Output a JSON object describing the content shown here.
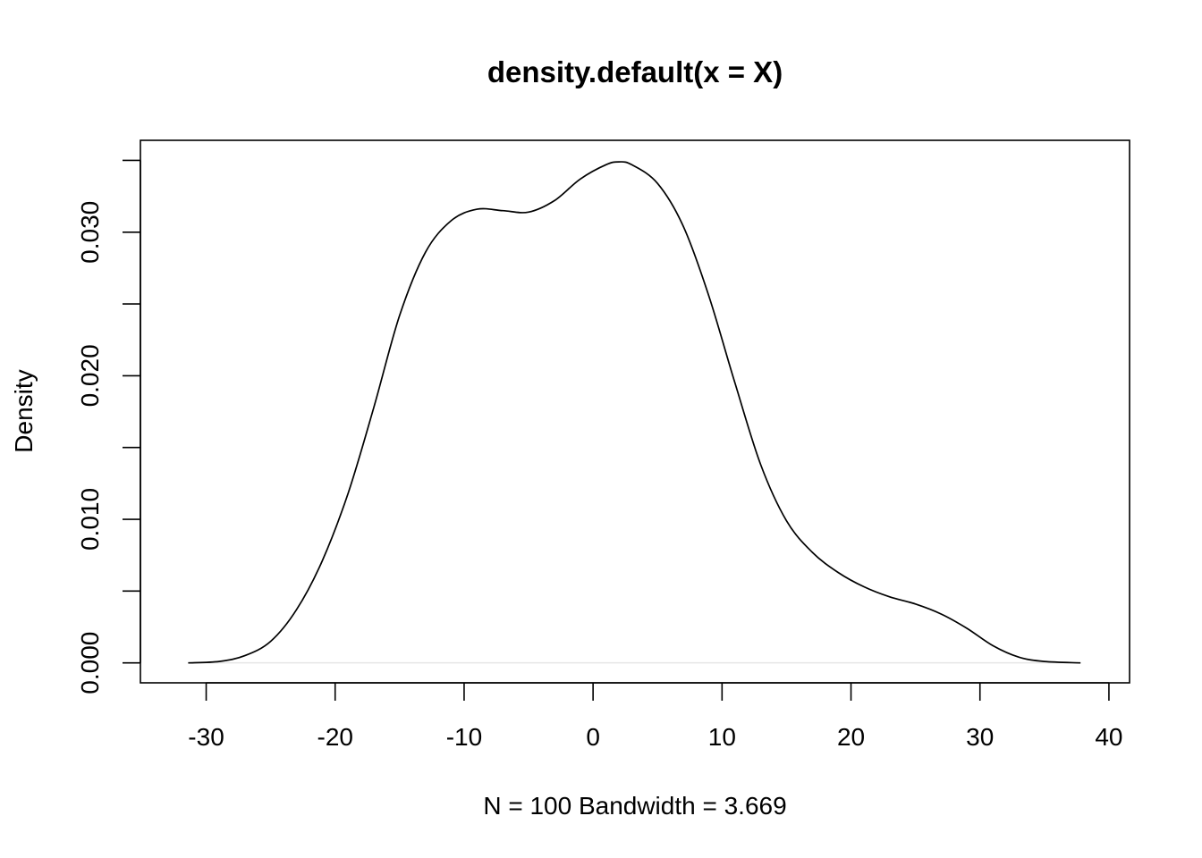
{
  "chart_data": {
    "type": "line",
    "title": "density.default(x = X)",
    "xlabel": "N = 100   Bandwidth = 3.669",
    "ylabel": "Density",
    "xlim": [
      -35.1,
      41.6
    ],
    "ylim": [
      -0.00139,
      0.0364
    ],
    "x_ticks": [
      -30,
      -20,
      -10,
      0,
      10,
      20,
      30,
      40
    ],
    "x_tick_labels": [
      "-30",
      "-20",
      "-10",
      "0",
      "10",
      "20",
      "30",
      "40"
    ],
    "y_ticks": [
      0.0,
      0.005,
      0.01,
      0.015,
      0.02,
      0.025,
      0.03,
      0.035
    ],
    "y_tick_labels": [
      "0.000",
      "",
      "0.010",
      "",
      "0.020",
      "",
      "0.030",
      ""
    ],
    "grid": false,
    "legend": "none",
    "baseline": 0,
    "series": [
      {
        "color": "#000000",
        "x": [
          -31.4,
          -29,
          -27,
          -25,
          -23,
          -21,
          -19,
          -17,
          -15,
          -13,
          -11,
          -9,
          -7,
          -5,
          -3,
          -1,
          1,
          2,
          3,
          5,
          7,
          9,
          11,
          13,
          15,
          17,
          19,
          21,
          23,
          25,
          27,
          29,
          31,
          33,
          35,
          37.8
        ],
        "y": [
          0.0,
          0.0001,
          0.0005,
          0.0015,
          0.0037,
          0.0071,
          0.0118,
          0.0178,
          0.0242,
          0.0286,
          0.0308,
          0.0316,
          0.0315,
          0.0314,
          0.0322,
          0.0337,
          0.0347,
          0.0349,
          0.0347,
          0.0334,
          0.0304,
          0.0255,
          0.0195,
          0.0138,
          0.0099,
          0.0077,
          0.0063,
          0.0053,
          0.0046,
          0.0041,
          0.0034,
          0.0024,
          0.0012,
          0.0004,
          0.0001,
          0.0
        ]
      }
    ]
  }
}
